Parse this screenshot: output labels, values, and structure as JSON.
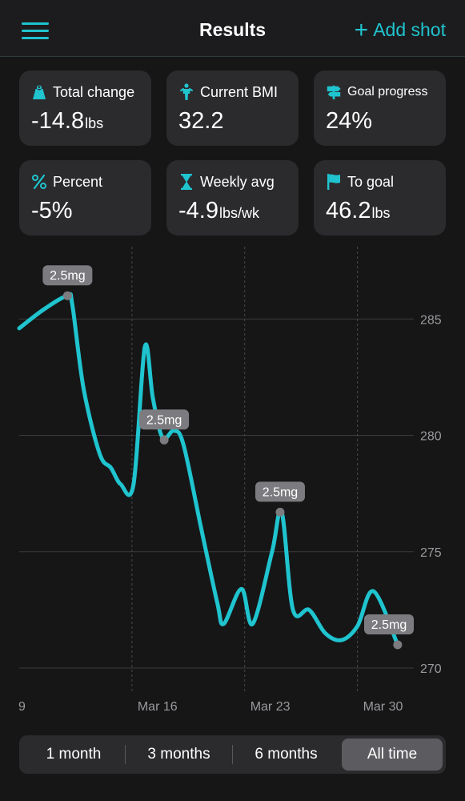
{
  "header": {
    "title": "Results",
    "add_label": "Add shot"
  },
  "stats": [
    {
      "label": "Total change",
      "value": "-14.8",
      "unit": "lbs",
      "icon": "scale-weight-icon"
    },
    {
      "label": "Current BMI",
      "value": "32.2",
      "unit": "",
      "icon": "person-icon"
    },
    {
      "label": "Goal progress",
      "value": "24%",
      "unit": "",
      "icon": "signpost-icon"
    },
    {
      "label": "Percent",
      "value": "-5%",
      "unit": "",
      "icon": "percent-icon"
    },
    {
      "label": "Weekly avg",
      "value": "-4.9",
      "unit": "lbs/wk",
      "icon": "hourglass-icon"
    },
    {
      "label": "To goal",
      "value": "46.2",
      "unit": "lbs",
      "icon": "flag-icon"
    }
  ],
  "chart_data": {
    "type": "line",
    "y_ticks": [
      285,
      280,
      275,
      270
    ],
    "y_tick_labels": [
      "285",
      "280",
      "275",
      "270"
    ],
    "ylim": [
      268.2,
      288.2
    ],
    "x_tick_labels": [
      "9",
      "Mar 16",
      "Mar 23",
      "Mar 30"
    ],
    "x_tick_positions": [
      9,
      16,
      23,
      30
    ],
    "xlim": [
      9,
      33.5
    ],
    "line_color": "#1fc4cf",
    "series": [
      {
        "values": [
          [
            9,
            284.6
          ],
          [
            10.5,
            285.4
          ],
          [
            12,
            286.0
          ],
          [
            12.3,
            285.6
          ],
          [
            13,
            282.0
          ],
          [
            14,
            279.2
          ],
          [
            14.7,
            278.6
          ],
          [
            15.3,
            277.9
          ],
          [
            16.1,
            277.9
          ],
          [
            16.8,
            283.8
          ],
          [
            17.3,
            281.6
          ],
          [
            17.9,
            279.9
          ],
          [
            18.6,
            280.2
          ],
          [
            19.2,
            279.6
          ],
          [
            20.3,
            276.0
          ],
          [
            21.3,
            272.8
          ],
          [
            21.7,
            271.9
          ],
          [
            22.8,
            273.4
          ],
          [
            23.5,
            271.9
          ],
          [
            24.7,
            275.0
          ],
          [
            25.3,
            276.7
          ],
          [
            26,
            272.5
          ],
          [
            27,
            272.5
          ],
          [
            28,
            271.5
          ],
          [
            29,
            271.2
          ],
          [
            30,
            271.8
          ],
          [
            31,
            273.3
          ],
          [
            32.5,
            271.0
          ]
        ]
      }
    ],
    "dose_markers": [
      {
        "x": 12,
        "y": 286.0,
        "label": "2.5mg"
      },
      {
        "x": 18,
        "y": 279.8,
        "label": "2.5mg"
      },
      {
        "x": 25.2,
        "y": 276.7,
        "label": "2.5mg"
      },
      {
        "x": 32.5,
        "y": 271.0,
        "label": "2.5mg"
      }
    ]
  },
  "range_options": [
    "1 month",
    "3 months",
    "6 months",
    "All time"
  ],
  "range_selected": "All time"
}
